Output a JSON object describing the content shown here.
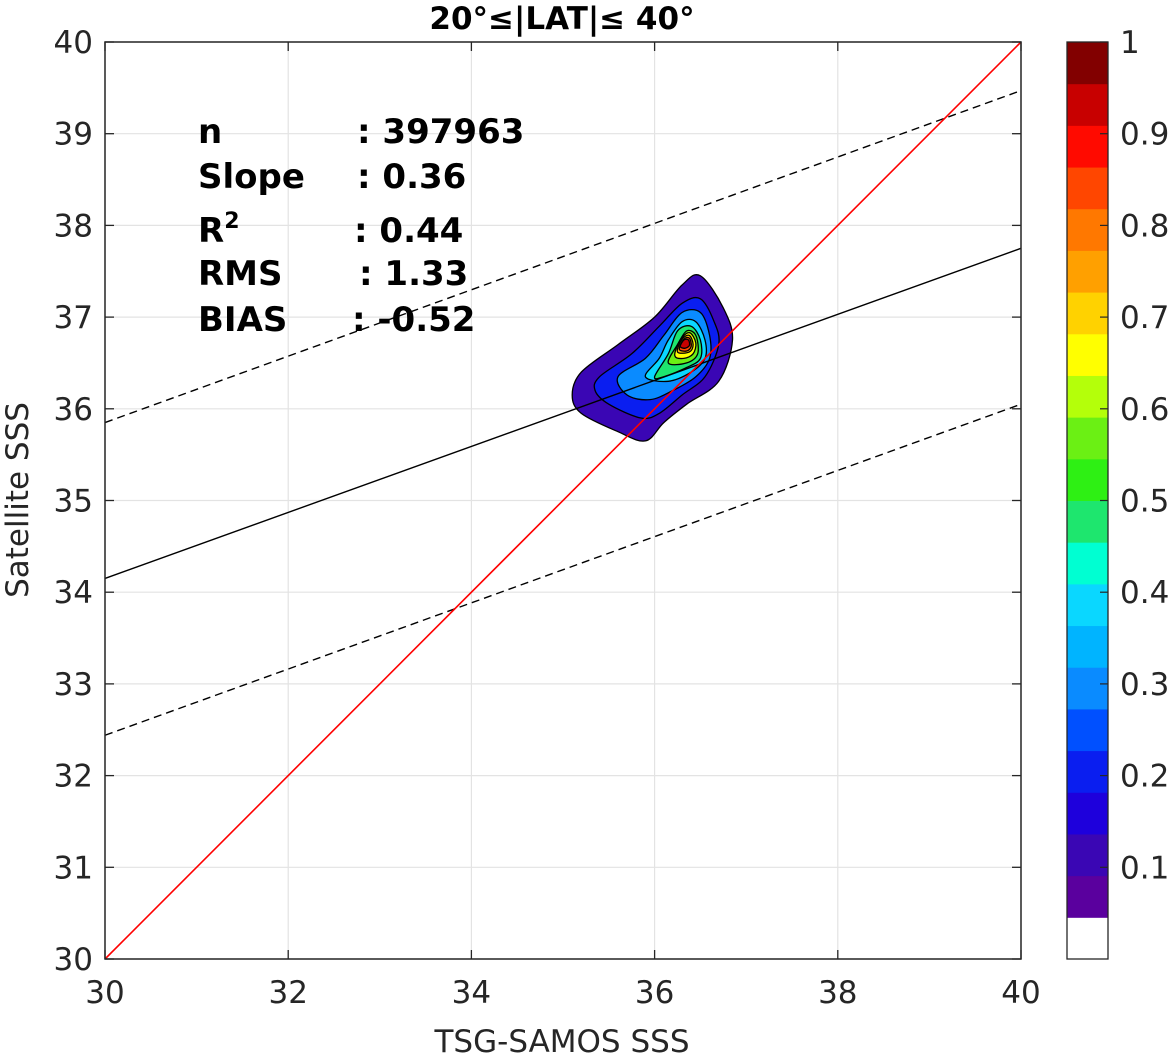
{
  "chart_data": {
    "type": "contour",
    "title": "20°≤|LAT|≤ 40°",
    "xlabel": "TSG-SAMOS SSS",
    "ylabel": "Satellite SSS",
    "xlim": [
      30,
      40
    ],
    "ylim": [
      30,
      40
    ],
    "xticks": [
      "30",
      "32",
      "34",
      "36",
      "38",
      "40"
    ],
    "yticks": [
      "30",
      "31",
      "32",
      "33",
      "34",
      "35",
      "36",
      "37",
      "38",
      "39",
      "40"
    ],
    "grid": true,
    "stats": [
      {
        "label": "n",
        "value": ": 397963"
      },
      {
        "label": "Slope",
        "value": ": 0.36"
      },
      {
        "label": "R",
        "sup": "2",
        "value": ": 0.44"
      },
      {
        "label": "RMS",
        "value": ": 1.33"
      },
      {
        "label": "BIAS",
        "value": ": -0.52"
      }
    ],
    "lines": {
      "one_to_one": {
        "x": [
          30,
          40
        ],
        "y": [
          30,
          40
        ],
        "color": "#ff0000"
      },
      "fit": {
        "x": [
          30,
          40
        ],
        "y": [
          34.15,
          37.75
        ],
        "color": "#000000"
      },
      "fit_upper": {
        "x": [
          30,
          40
        ],
        "y": [
          35.85,
          39.47
        ],
        "color": "#000000",
        "dash": true
      },
      "fit_lower": {
        "x": [
          30,
          40
        ],
        "y": [
          32.44,
          36.05
        ],
        "color": "#000000",
        "dash": true
      }
    },
    "contours": [
      {
        "level": 0.05,
        "color": "#3a06b4",
        "points": [
          [
            35.2,
            36.4
          ],
          [
            35.6,
            36.7
          ],
          [
            36.0,
            37.0
          ],
          [
            36.3,
            37.35
          ],
          [
            36.5,
            37.45
          ],
          [
            36.75,
            37.1
          ],
          [
            36.85,
            36.75
          ],
          [
            36.7,
            36.3
          ],
          [
            36.35,
            36.05
          ],
          [
            36.1,
            35.85
          ],
          [
            35.9,
            35.65
          ],
          [
            35.6,
            35.75
          ],
          [
            35.2,
            35.95
          ],
          [
            35.1,
            36.15
          ]
        ]
      },
      {
        "level": 0.15,
        "color": "#0a1ef0",
        "points": [
          [
            35.4,
            36.35
          ],
          [
            35.75,
            36.6
          ],
          [
            36.05,
            36.9
          ],
          [
            36.3,
            37.15
          ],
          [
            36.5,
            37.2
          ],
          [
            36.65,
            36.95
          ],
          [
            36.7,
            36.7
          ],
          [
            36.55,
            36.35
          ],
          [
            36.3,
            36.15
          ],
          [
            36.05,
            35.95
          ],
          [
            35.85,
            35.9
          ],
          [
            35.5,
            36.05
          ],
          [
            35.35,
            36.2
          ]
        ]
      },
      {
        "level": 0.25,
        "color": "#0a8bff",
        "points": [
          [
            35.6,
            36.35
          ],
          [
            35.9,
            36.55
          ],
          [
            36.1,
            36.8
          ],
          [
            36.3,
            37.05
          ],
          [
            36.5,
            37.05
          ],
          [
            36.6,
            36.8
          ],
          [
            36.6,
            36.55
          ],
          [
            36.45,
            36.35
          ],
          [
            36.2,
            36.2
          ],
          [
            35.95,
            36.1
          ],
          [
            35.7,
            36.15
          ]
        ]
      },
      {
        "level": 0.35,
        "color": "#0ad7ff",
        "points": [
          [
            35.9,
            36.35
          ],
          [
            36.05,
            36.55
          ],
          [
            36.15,
            36.75
          ],
          [
            36.3,
            36.95
          ],
          [
            36.45,
            36.95
          ],
          [
            36.55,
            36.75
          ],
          [
            36.55,
            36.55
          ],
          [
            36.4,
            36.4
          ],
          [
            36.15,
            36.3
          ]
        ]
      },
      {
        "level": 0.45,
        "color": "#1ee66e",
        "points": [
          [
            36.0,
            36.35
          ],
          [
            36.15,
            36.6
          ],
          [
            36.25,
            36.85
          ],
          [
            36.4,
            36.9
          ],
          [
            36.5,
            36.75
          ],
          [
            36.5,
            36.55
          ],
          [
            36.35,
            36.45
          ],
          [
            36.1,
            36.35
          ]
        ]
      },
      {
        "level": 0.55,
        "color": "#6bf014",
        "points": [
          [
            36.15,
            36.5
          ],
          [
            36.25,
            36.7
          ],
          [
            36.35,
            36.85
          ],
          [
            36.45,
            36.8
          ],
          [
            36.47,
            36.6
          ],
          [
            36.35,
            36.5
          ]
        ]
      },
      {
        "level": 0.65,
        "color": "#ffff00",
        "points": [
          [
            36.22,
            36.58
          ],
          [
            36.28,
            36.75
          ],
          [
            36.38,
            36.83
          ],
          [
            36.45,
            36.72
          ],
          [
            36.42,
            36.6
          ],
          [
            36.32,
            36.55
          ]
        ]
      },
      {
        "level": 0.75,
        "color": "#ffb400",
        "points": [
          [
            36.25,
            36.62
          ],
          [
            36.3,
            36.76
          ],
          [
            36.38,
            36.8
          ],
          [
            36.42,
            36.7
          ],
          [
            36.38,
            36.62
          ]
        ]
      },
      {
        "level": 0.85,
        "color": "#ff4600",
        "points": [
          [
            36.27,
            36.65
          ],
          [
            36.32,
            36.76
          ],
          [
            36.38,
            36.77
          ],
          [
            36.4,
            36.68
          ],
          [
            36.35,
            36.63
          ]
        ]
      },
      {
        "level": 0.95,
        "color": "#c80000",
        "points": [
          [
            36.28,
            36.68
          ],
          [
            36.32,
            36.75
          ],
          [
            36.37,
            36.75
          ],
          [
            36.38,
            36.69
          ],
          [
            36.33,
            36.66
          ]
        ]
      }
    ],
    "colorbar": {
      "ticks": [
        "0.1",
        "0.2",
        "0.3",
        "0.4",
        "0.5",
        "0.6",
        "0.7",
        "0.8",
        "0.9",
        "1"
      ],
      "colors": [
        "#ffffff",
        "#5a009e",
        "#3a06b4",
        "#1e00dc",
        "#0a1ef0",
        "#0050ff",
        "#0a8bff",
        "#00b4ff",
        "#0ad7ff",
        "#00ffd2",
        "#1ee66e",
        "#2ef014",
        "#6bf014",
        "#b4ff0a",
        "#ffff00",
        "#ffd200",
        "#ffa000",
        "#ff7800",
        "#ff4600",
        "#ff0a00",
        "#c80000",
        "#820000"
      ]
    }
  }
}
